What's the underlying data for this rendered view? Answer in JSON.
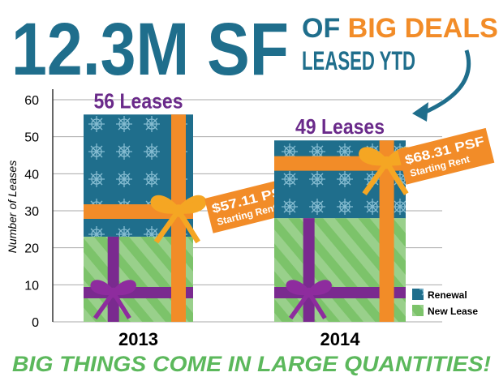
{
  "chart_data": {
    "type": "bar",
    "stacked": true,
    "title": "12.3M SF",
    "subtitle": {
      "prefix": "OF",
      "highlight": "BIG DEALS",
      "line2": "LEASED YTD"
    },
    "footer": "BIG THINGS COME IN LARGE QUANTITIES!",
    "y_label": "Number of Leases",
    "categories": [
      "2013",
      "2014"
    ],
    "series": [
      {
        "name": "New Lease",
        "color": "#7cc36a",
        "values": [
          23,
          28
        ]
      },
      {
        "name": "Renewal",
        "color": "#1f6e8c",
        "values": [
          33,
          21
        ]
      }
    ],
    "total_labels": [
      "56 Leases",
      "49 Leases"
    ],
    "price_tags": [
      {
        "price": "$57.11 PSF",
        "note": "Starting Rent"
      },
      {
        "price": "$68.31 PSF",
        "note": "Starting Rent"
      }
    ],
    "ylim": [
      0,
      60
    ],
    "yticks": [
      0,
      10,
      20,
      30,
      40,
      50,
      60
    ],
    "grid": true,
    "legend": "bottom-right"
  }
}
